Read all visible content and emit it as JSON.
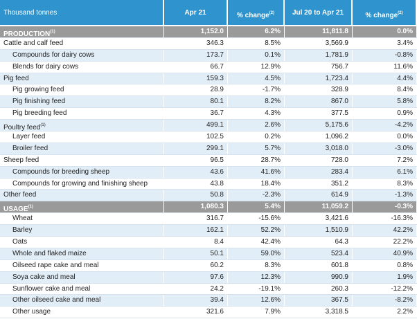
{
  "header": {
    "cells": [
      {
        "text": "Thousand tonnes"
      },
      {
        "text": "Apr 21"
      },
      {
        "text": "% change",
        "note": "(2)"
      },
      {
        "text": "Jul 20 to Apr 21"
      },
      {
        "text": "% change",
        "note": "(2)"
      }
    ]
  },
  "sections": [
    {
      "label": "PRODUCTION",
      "note": "(1)",
      "values": [
        "1,152.0",
        "6.2%",
        "11,811.8",
        "0.0%"
      ],
      "groups": [
        {
          "label": "Cattle and calf feed",
          "values": [
            "346.3",
            "8.5%",
            "3,569.9",
            "3.4%"
          ],
          "items": [
            {
              "label": "Compounds for dairy cows",
              "values": [
                "173.7",
                "0.1%",
                "1,781.9",
                "-0.8%"
              ]
            },
            {
              "label": "Blends for dairy cows",
              "values": [
                "66.7",
                "12.9%",
                "756.7",
                "11.6%"
              ]
            }
          ]
        },
        {
          "label": "Pig feed",
          "values": [
            "159.3",
            "4.5%",
            "1,723.4",
            "4.4%"
          ],
          "items": [
            {
              "label": "Pig growing feed",
              "values": [
                "28.9",
                "-1.7%",
                "328.9",
                "8.4%"
              ]
            },
            {
              "label": "Pig finishing feed",
              "values": [
                "80.1",
                "8.2%",
                "867.0",
                "5.8%"
              ]
            },
            {
              "label": "Pig breeding feed",
              "values": [
                "36.7",
                "4.3%",
                "377.5",
                "0.9%"
              ]
            }
          ]
        },
        {
          "label": "Poultry feed",
          "note": "(1)",
          "values": [
            "499.1",
            "2.6%",
            "5,175.6",
            "-4.2%"
          ],
          "items": [
            {
              "label": "Layer feed",
              "values": [
                "102.5",
                "0.2%",
                "1,096.2",
                "0.0%"
              ]
            },
            {
              "label": "Broiler feed",
              "values": [
                "299.1",
                "5.7%",
                "3,018.0",
                "-3.0%"
              ]
            }
          ]
        },
        {
          "label": "Sheep feed",
          "values": [
            "96.5",
            "28.7%",
            "728.0",
            "7.2%"
          ],
          "items": [
            {
              "label": "Compounds for breeding sheep",
              "values": [
                "43.6",
                "41.6%",
                "283.4",
                "6.1%"
              ]
            },
            {
              "label": "Compounds for growing and finishing sheep",
              "values": [
                "43.8",
                "18.4%",
                "351.2",
                "8.3%"
              ]
            }
          ]
        },
        {
          "label": "Other feed",
          "values": [
            "50.8",
            "-2.3%",
            "614.9",
            "-1.3%"
          ],
          "items": []
        }
      ]
    },
    {
      "label": "USAGE",
      "note": "(1)",
      "values": [
        "1,080.3",
        "5.4%",
        "11,059.2",
        "-0.3%"
      ],
      "groups": [
        {
          "label": "Wheat",
          "values": [
            "316.7",
            "-15.6%",
            "3,421.6",
            "-16.3%"
          ],
          "items": []
        },
        {
          "label": "Barley",
          "values": [
            "162.1",
            "52.2%",
            "1,510.9",
            "42.2%"
          ],
          "items": []
        },
        {
          "label": "Oats",
          "values": [
            "8.4",
            "42.4%",
            "64.3",
            "22.2%"
          ],
          "items": []
        },
        {
          "label": "Whole and flaked maize",
          "values": [
            "50.1",
            "59.0%",
            "523.4",
            "40.9%"
          ],
          "items": []
        },
        {
          "label": "Oilseed rape cake and meal",
          "values": [
            "60.2",
            "8.3%",
            "601.8",
            "0.8%"
          ],
          "items": []
        },
        {
          "label": "Soya cake and meal",
          "values": [
            "97.6",
            "12.3%",
            "990.9",
            "1.9%"
          ],
          "items": []
        },
        {
          "label": "Sunflower cake and meal",
          "values": [
            "24.2",
            "-19.1%",
            "260.3",
            "-12.2%"
          ],
          "items": []
        },
        {
          "label": "Other oilseed cake and meal",
          "values": [
            "39.4",
            "12.6%",
            "367.5",
            "-8.2%"
          ],
          "items": []
        },
        {
          "label": "Other usage",
          "values": [
            "321.6",
            "7.9%",
            "3,318.5",
            "2.2%"
          ],
          "items": []
        }
      ]
    }
  ]
}
